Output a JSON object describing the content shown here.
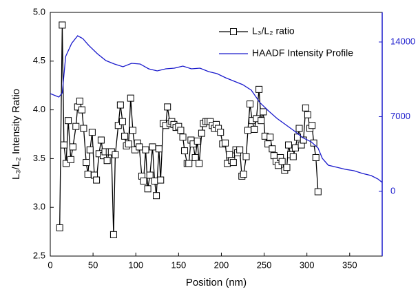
{
  "chart_data": {
    "type": "line",
    "x_label": "Position (nm)",
    "y_label": "L₃/L₂ Intensity Ratio",
    "xlim": [
      0,
      388
    ],
    "xticks": [
      0,
      50,
      100,
      150,
      200,
      250,
      300,
      350
    ],
    "ylim": [
      2.5,
      5.0
    ],
    "yticks": [
      2.5,
      {
        "value": 3,
        "label": "3.0"
      },
      3.5,
      {
        "value": 4,
        "label": "4.0"
      },
      4.5,
      {
        "value": 5,
        "label": "5.0"
      }
    ],
    "y2lim": [
      -6065,
      16774
    ],
    "y2ticks": [
      0,
      7000,
      14000
    ],
    "y2_axis_color": "#1a1acc",
    "legend": "upper-right",
    "series": [
      {
        "name": "L₃/L₂ ratio",
        "color": "#000000",
        "marker": "square",
        "x": [
          11,
          14,
          16,
          18.5,
          21,
          24,
          26.5,
          30,
          32,
          34.5,
          37,
          39,
          42,
          44,
          46.5,
          49,
          51.5,
          54,
          57,
          59.5,
          62,
          64,
          66.5,
          69,
          71.5,
          74,
          76,
          79.5,
          82,
          84.5,
          87,
          89,
          91.5,
          94,
          96.5,
          99,
          102,
          104,
          107,
          109,
          111.5,
          114,
          116.5,
          119.5,
          122,
          124,
          127,
          129,
          132,
          135,
          137,
          140,
          142,
          144.5,
          147,
          150,
          152.5,
          155,
          157,
          160,
          162,
          164.5,
          167,
          169.5,
          172,
          174,
          177,
          179,
          182,
          184.5,
          187,
          189.5,
          192,
          194,
          196.5,
          199,
          201.5,
          204.5,
          207,
          209.5,
          212,
          214,
          217,
          219,
          221.5,
          224,
          226,
          229,
          231,
          233.5,
          236,
          238.5,
          241,
          244,
          246.5,
          249,
          251,
          254.5,
          257,
          259.5,
          261.5,
          264,
          266.5,
          269,
          271,
          274,
          276.5,
          278.5,
          281,
          284,
          286.5,
          289,
          291,
          293.5,
          296,
          298.5,
          301,
          303.5,
          306,
          308,
          310.5,
          313
        ],
        "values": [
          2.79,
          4.87,
          3.64,
          3.45,
          3.89,
          3.49,
          3.62,
          3.83,
          4.03,
          4.09,
          4.0,
          3.81,
          3.46,
          3.34,
          3.59,
          3.77,
          3.33,
          3.28,
          3.55,
          3.69,
          3.53,
          3.57,
          3.48,
          3.57,
          3.57,
          2.72,
          3.54,
          3.84,
          4.05,
          3.88,
          3.73,
          3.63,
          3.65,
          4.12,
          3.79,
          3.59,
          3.66,
          3.62,
          3.32,
          3.27,
          3.59,
          3.19,
          3.33,
          3.62,
          3.27,
          3.12,
          3.6,
          3.28,
          3.86,
          3.84,
          4.03,
          3.86,
          3.88,
          3.85,
          3.82,
          3.83,
          3.79,
          3.72,
          3.58,
          3.45,
          3.45,
          3.69,
          3.65,
          3.51,
          3.68,
          3.45,
          3.76,
          3.86,
          3.88,
          3.88,
          3.88,
          3.84,
          3.81,
          3.85,
          3.81,
          3.77,
          3.65,
          3.66,
          3.45,
          3.54,
          3.48,
          3.46,
          3.59,
          3.56,
          3.59,
          3.32,
          3.34,
          3.52,
          3.79,
          4.06,
          3.89,
          3.8,
          3.91,
          4.21,
          3.89,
          3.98,
          3.73,
          3.65,
          3.72,
          3.6,
          3.53,
          3.47,
          3.43,
          3.51,
          3.47,
          3.38,
          3.41,
          3.64,
          3.54,
          3.52,
          3.61,
          3.72,
          3.81,
          3.64,
          3.69,
          4.02,
          3.95,
          3.81,
          3.84,
          3.66,
          3.51,
          3.16
        ]
      },
      {
        "name": "HAADF Intensity Profile",
        "color": "#1a1acc",
        "axis": "y2",
        "x": [
          0,
          10,
          14,
          18,
          25,
          32,
          38,
          45,
          55,
          65,
          75,
          85,
          95,
          105,
          115,
          125,
          135,
          145,
          155,
          165,
          175,
          185,
          195,
          205,
          215,
          225,
          235,
          245,
          255,
          265,
          275,
          285,
          295,
          305,
          313,
          318,
          325,
          335,
          345,
          355,
          365,
          375,
          383,
          388
        ],
        "values": [
          9162,
          8839,
          9226,
          12645,
          13871,
          14581,
          14323,
          13678,
          12904,
          12258,
          11936,
          11678,
          12000,
          11936,
          11484,
          11290,
          11484,
          11549,
          11742,
          11484,
          11549,
          11226,
          11033,
          10646,
          10323,
          10000,
          9484,
          8323,
          7549,
          6839,
          6258,
          5678,
          5033,
          4645,
          4065,
          3097,
          2452,
          2258,
          2065,
          1935,
          1677,
          1484,
          1161,
          839
        ]
      }
    ]
  }
}
